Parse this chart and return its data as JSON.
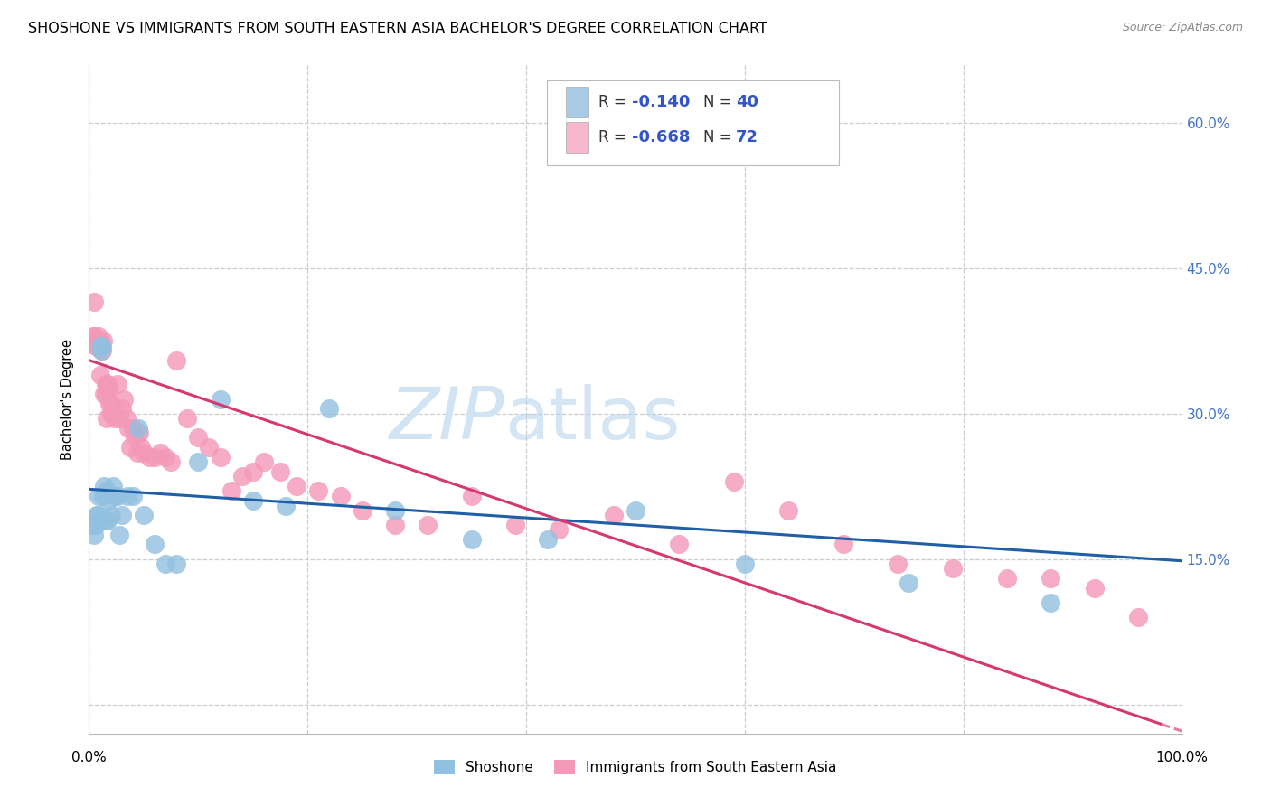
{
  "title": "SHOSHONE VS IMMIGRANTS FROM SOUTH EASTERN ASIA BACHELOR'S DEGREE CORRELATION CHART",
  "source": "Source: ZipAtlas.com",
  "ylabel": "Bachelor's Degree",
  "ytick_values": [
    0.0,
    0.15,
    0.3,
    0.45,
    0.6
  ],
  "ytick_labels": [
    "",
    "15.0%",
    "30.0%",
    "45.0%",
    "60.0%"
  ],
  "xmin": 0.0,
  "xmax": 1.0,
  "ymin": -0.03,
  "ymax": 0.66,
  "shoshone_color": "#92c0e0",
  "immigrant_color": "#f498b8",
  "trendline1_color": "#1f5fa6",
  "trendline2_color": "#d63870",
  "legend1_fill": "#a8cce8",
  "legend2_fill": "#f8b8cc",
  "tick_color": "#4472c4",
  "title_fontsize": 11.5,
  "source_fontsize": 9,
  "shoshone_x": [
    0.004,
    0.005,
    0.006,
    0.007,
    0.008,
    0.009,
    0.01,
    0.011,
    0.012,
    0.013,
    0.014,
    0.015,
    0.016,
    0.017,
    0.018,
    0.02,
    0.022,
    0.024,
    0.026,
    0.028,
    0.03,
    0.035,
    0.04,
    0.045,
    0.05,
    0.06,
    0.07,
    0.08,
    0.1,
    0.12,
    0.15,
    0.18,
    0.22,
    0.28,
    0.35,
    0.42,
    0.5,
    0.6,
    0.75,
    0.88
  ],
  "shoshone_y": [
    0.185,
    0.175,
    0.185,
    0.195,
    0.195,
    0.215,
    0.37,
    0.365,
    0.37,
    0.215,
    0.225,
    0.19,
    0.22,
    0.19,
    0.21,
    0.195,
    0.225,
    0.215,
    0.215,
    0.175,
    0.195,
    0.215,
    0.215,
    0.285,
    0.195,
    0.165,
    0.145,
    0.145,
    0.25,
    0.315,
    0.21,
    0.205,
    0.305,
    0.2,
    0.17,
    0.17,
    0.2,
    0.145,
    0.125,
    0.105
  ],
  "immigrant_x": [
    0.003,
    0.004,
    0.005,
    0.006,
    0.007,
    0.008,
    0.009,
    0.01,
    0.011,
    0.012,
    0.013,
    0.014,
    0.015,
    0.016,
    0.017,
    0.018,
    0.019,
    0.02,
    0.022,
    0.024,
    0.026,
    0.028,
    0.03,
    0.032,
    0.034,
    0.036,
    0.038,
    0.04,
    0.042,
    0.044,
    0.046,
    0.048,
    0.05,
    0.055,
    0.06,
    0.065,
    0.07,
    0.075,
    0.08,
    0.09,
    0.1,
    0.11,
    0.12,
    0.13,
    0.14,
    0.15,
    0.16,
    0.175,
    0.19,
    0.21,
    0.23,
    0.25,
    0.28,
    0.31,
    0.35,
    0.39,
    0.43,
    0.48,
    0.54,
    0.59,
    0.64,
    0.69,
    0.74,
    0.79,
    0.84,
    0.88,
    0.92,
    0.96,
    0.005,
    0.01,
    0.015,
    0.02
  ],
  "immigrant_y": [
    0.375,
    0.38,
    0.415,
    0.37,
    0.37,
    0.375,
    0.38,
    0.375,
    0.37,
    0.365,
    0.375,
    0.32,
    0.33,
    0.295,
    0.33,
    0.325,
    0.31,
    0.31,
    0.3,
    0.295,
    0.33,
    0.295,
    0.305,
    0.315,
    0.295,
    0.285,
    0.265,
    0.285,
    0.275,
    0.26,
    0.28,
    0.265,
    0.26,
    0.255,
    0.255,
    0.26,
    0.255,
    0.25,
    0.355,
    0.295,
    0.275,
    0.265,
    0.255,
    0.22,
    0.235,
    0.24,
    0.25,
    0.24,
    0.225,
    0.22,
    0.215,
    0.2,
    0.185,
    0.185,
    0.215,
    0.185,
    0.18,
    0.195,
    0.165,
    0.23,
    0.2,
    0.165,
    0.145,
    0.14,
    0.13,
    0.13,
    0.12,
    0.09,
    0.38,
    0.34,
    0.32,
    0.3
  ],
  "immigrant_trendline_x0": 0.0,
  "immigrant_trendline_x1": 0.98,
  "immigrant_trendline_y0": 0.355,
  "immigrant_trendline_y1": -0.02,
  "shoshone_trendline_x0": 0.0,
  "shoshone_trendline_x1": 1.0,
  "shoshone_trendline_y0": 0.222,
  "shoshone_trendline_y1": 0.148
}
